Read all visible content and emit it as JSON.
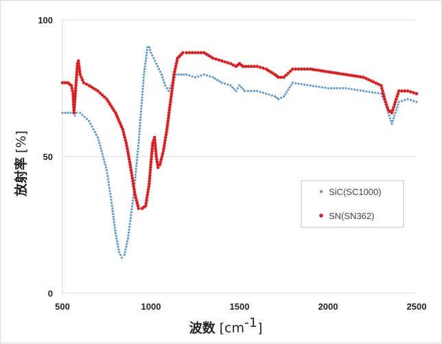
{
  "chart_data": {
    "type": "scatter",
    "xlabel": "波数",
    "xlabel_unit_prefix": "[cm",
    "xlabel_unit_exp": "-1",
    "xlabel_unit_suffix": "]",
    "ylabel": "放射率",
    "ylabel_unit": "[%]",
    "xlim": [
      500,
      2500
    ],
    "ylim": [
      0,
      100
    ],
    "x_ticks": [
      "500",
      "1000",
      "1500",
      "2000",
      "2500"
    ],
    "y_ticks": [
      "0",
      "50",
      "100"
    ],
    "grid": "horizontal",
    "legend_position": "right",
    "series": [
      {
        "name": "SiC(SC1000)",
        "color": "#5b9bd5",
        "x": [
          500,
          560,
          570,
          580,
          600,
          650,
          700,
          750,
          780,
          800,
          820,
          835,
          850,
          870,
          900,
          930,
          960,
          980,
          990,
          1000,
          1030,
          1060,
          1080,
          1100,
          1120,
          1140,
          1200,
          1250,
          1300,
          1350,
          1400,
          1450,
          1480,
          1500,
          1530,
          1600,
          1650,
          1700,
          1720,
          1750,
          1800,
          1900,
          2000,
          2100,
          2200,
          2300,
          2320,
          2340,
          2360,
          2380,
          2400,
          2450,
          2500
        ],
        "y": [
          66,
          66,
          65,
          66,
          66,
          63,
          57,
          45,
          32,
          22,
          15,
          13,
          14,
          20,
          35,
          55,
          80,
          90,
          90,
          88,
          84,
          80,
          76,
          74,
          77,
          80,
          80,
          79,
          80,
          79,
          77,
          76,
          74,
          76,
          74,
          74,
          73,
          72,
          71,
          72,
          77,
          76,
          75,
          75,
          74,
          73,
          70,
          66,
          62,
          66,
          70,
          71,
          70
        ]
      },
      {
        "name": "SN(SN362)",
        "color": "#e31a1c",
        "x": [
          500,
          530,
          550,
          560,
          565,
          575,
          585,
          590,
          600,
          620,
          650,
          700,
          750,
          800,
          840,
          860,
          880,
          900,
          910,
          930,
          950,
          970,
          990,
          1000,
          1010,
          1020,
          1030,
          1040,
          1050,
          1070,
          1090,
          1110,
          1130,
          1150,
          1180,
          1200,
          1250,
          1300,
          1350,
          1400,
          1450,
          1480,
          1500,
          1520,
          1550,
          1600,
          1650,
          1700,
          1720,
          1750,
          1800,
          1900,
          2000,
          2100,
          2200,
          2300,
          2320,
          2340,
          2360,
          2380,
          2400,
          2450,
          2500
        ],
        "y": [
          77,
          77,
          76,
          73,
          66,
          75,
          84,
          85,
          80,
          77,
          76,
          74,
          71,
          66,
          60,
          55,
          48,
          40,
          36,
          31,
          31,
          32,
          40,
          48,
          55,
          57,
          50,
          46,
          47,
          52,
          60,
          70,
          80,
          86,
          88,
          88,
          88,
          88,
          86,
          85,
          84,
          83,
          84,
          83,
          83,
          83,
          82,
          80,
          79,
          79,
          82,
          82,
          81,
          80,
          79,
          76,
          71,
          67,
          66,
          70,
          74,
          74,
          73
        ]
      }
    ]
  }
}
